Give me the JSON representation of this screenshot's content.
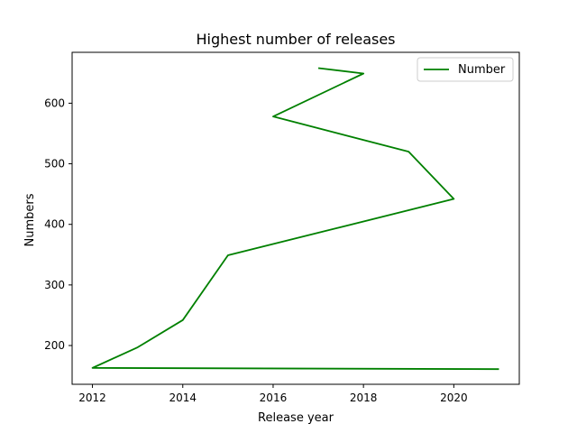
{
  "chart_data": {
    "type": "line",
    "title": "Highest number of releases",
    "xlabel": "Release year",
    "ylabel": "Numbers",
    "xlim": [
      2011.55,
      2021.45
    ],
    "ylim": [
      136,
      684
    ],
    "xticks": [
      2012,
      2014,
      2016,
      2018,
      2020
    ],
    "yticks": [
      200,
      300,
      400,
      500,
      600
    ],
    "grid": false,
    "legend": {
      "position": "top-right",
      "entries": [
        "Number"
      ]
    },
    "series": [
      {
        "name": "Number",
        "color": "#008000",
        "x": [
          2021,
          2012,
          2013,
          2014,
          2015,
          2020,
          2019,
          2016,
          2018,
          2017
        ],
        "y": [
          161,
          163,
          197,
          242,
          349,
          442,
          520,
          578,
          649,
          658
        ]
      }
    ]
  }
}
